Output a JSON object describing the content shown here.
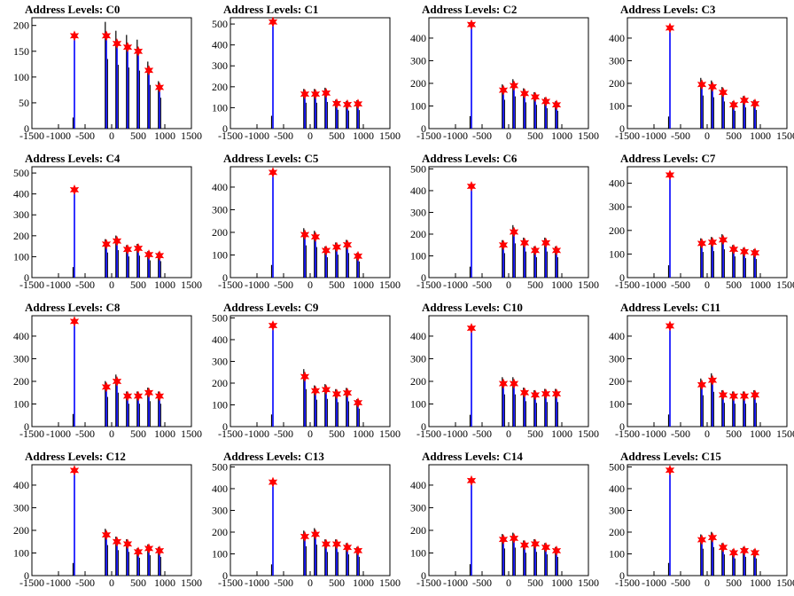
{
  "chart_data": [
    {
      "type": "histogram",
      "title": "Address Levels: C0",
      "ylim": [
        0,
        215
      ],
      "yticks": [
        0,
        50,
        100,
        150,
        200
      ],
      "xlim": [
        -1500,
        1500
      ],
      "xticks": [
        -1500,
        -1000,
        -500,
        0,
        500,
        1000,
        1500
      ],
      "peaks": [
        {
          "x": -700,
          "y": 180
        },
        {
          "x": -100,
          "y": 180
        },
        {
          "x": 100,
          "y": 165
        },
        {
          "x": 300,
          "y": 158
        },
        {
          "x": 500,
          "y": 150
        },
        {
          "x": 700,
          "y": 113
        },
        {
          "x": 900,
          "y": 80
        }
      ]
    },
    {
      "type": "histogram",
      "title": "Address Levels: C1",
      "ylim": [
        0,
        530
      ],
      "yticks": [
        0,
        100,
        200,
        300,
        400,
        500
      ],
      "xlim": [
        -1500,
        1500
      ],
      "xticks": [
        -1500,
        -1000,
        -500,
        0,
        500,
        1000,
        1500
      ],
      "peaks": [
        {
          "x": -700,
          "y": 510
        },
        {
          "x": -100,
          "y": 165
        },
        {
          "x": 100,
          "y": 165
        },
        {
          "x": 300,
          "y": 170
        },
        {
          "x": 500,
          "y": 120
        },
        {
          "x": 700,
          "y": 115
        },
        {
          "x": 900,
          "y": 118
        }
      ]
    },
    {
      "type": "histogram",
      "title": "Address Levels: C2",
      "ylim": [
        0,
        490
      ],
      "yticks": [
        0,
        100,
        200,
        300,
        400
      ],
      "xlim": [
        -1500,
        1500
      ],
      "xticks": [
        -1500,
        -1000,
        -500,
        0,
        500,
        1000,
        1500
      ],
      "peaks": [
        {
          "x": -700,
          "y": 460
        },
        {
          "x": -100,
          "y": 170
        },
        {
          "x": 100,
          "y": 190
        },
        {
          "x": 300,
          "y": 155
        },
        {
          "x": 500,
          "y": 140
        },
        {
          "x": 700,
          "y": 120
        },
        {
          "x": 900,
          "y": 105
        }
      ]
    },
    {
      "type": "histogram",
      "title": "Address Levels: C3",
      "ylim": [
        0,
        490
      ],
      "yticks": [
        0,
        100,
        200,
        300,
        400
      ],
      "xlim": [
        -1500,
        1500
      ],
      "xticks": [
        -1500,
        -1000,
        -500,
        0,
        500,
        1000,
        1500
      ],
      "peaks": [
        {
          "x": -700,
          "y": 445
        },
        {
          "x": -100,
          "y": 195
        },
        {
          "x": 100,
          "y": 185
        },
        {
          "x": 300,
          "y": 160
        },
        {
          "x": 500,
          "y": 105
        },
        {
          "x": 700,
          "y": 125
        },
        {
          "x": 900,
          "y": 110
        }
      ]
    },
    {
      "type": "histogram",
      "title": "Address Levels: C4",
      "ylim": [
        0,
        530
      ],
      "yticks": [
        0,
        100,
        200,
        300,
        400,
        500
      ],
      "xlim": [
        -1500,
        1500
      ],
      "xticks": [
        -1500,
        -1000,
        -500,
        0,
        500,
        1000,
        1500
      ],
      "peaks": [
        {
          "x": -700,
          "y": 420
        },
        {
          "x": -100,
          "y": 160
        },
        {
          "x": 100,
          "y": 175
        },
        {
          "x": 300,
          "y": 135
        },
        {
          "x": 500,
          "y": 140
        },
        {
          "x": 700,
          "y": 110
        },
        {
          "x": 900,
          "y": 105
        }
      ]
    },
    {
      "type": "histogram",
      "title": "Address Levels: C5",
      "ylim": [
        0,
        490
      ],
      "yticks": [
        0,
        100,
        200,
        300,
        400
      ],
      "xlim": [
        -1500,
        1500
      ],
      "xticks": [
        -1500,
        -1000,
        -500,
        0,
        500,
        1000,
        1500
      ],
      "peaks": [
        {
          "x": -700,
          "y": 465
        },
        {
          "x": -100,
          "y": 190
        },
        {
          "x": 100,
          "y": 180
        },
        {
          "x": 300,
          "y": 120
        },
        {
          "x": 500,
          "y": 135
        },
        {
          "x": 700,
          "y": 145
        },
        {
          "x": 900,
          "y": 95
        }
      ]
    },
    {
      "type": "histogram",
      "title": "Address Levels: C6",
      "ylim": [
        0,
        510
      ],
      "yticks": [
        0,
        100,
        200,
        300,
        400,
        500
      ],
      "xlim": [
        -1500,
        1500
      ],
      "xticks": [
        -1500,
        -1000,
        -500,
        0,
        500,
        1000,
        1500
      ],
      "peaks": [
        {
          "x": -700,
          "y": 420
        },
        {
          "x": -100,
          "y": 150
        },
        {
          "x": 100,
          "y": 210
        },
        {
          "x": 300,
          "y": 160
        },
        {
          "x": 500,
          "y": 125
        },
        {
          "x": 700,
          "y": 160
        },
        {
          "x": 900,
          "y": 125
        }
      ]
    },
    {
      "type": "histogram",
      "title": "Address Levels: C7",
      "ylim": [
        0,
        470
      ],
      "yticks": [
        0,
        100,
        200,
        300,
        400
      ],
      "xlim": [
        -1500,
        1500
      ],
      "xticks": [
        -1500,
        -1000,
        -500,
        0,
        500,
        1000,
        1500
      ],
      "peaks": [
        {
          "x": -700,
          "y": 435
        },
        {
          "x": -100,
          "y": 145
        },
        {
          "x": 100,
          "y": 150
        },
        {
          "x": 300,
          "y": 160
        },
        {
          "x": 500,
          "y": 120
        },
        {
          "x": 700,
          "y": 110
        },
        {
          "x": 900,
          "y": 105
        }
      ]
    },
    {
      "type": "histogram",
      "title": "Address Levels: C8",
      "ylim": [
        0,
        490
      ],
      "yticks": [
        0,
        100,
        200,
        300,
        400
      ],
      "xlim": [
        -1500,
        1500
      ],
      "xticks": [
        -1500,
        -1000,
        -500,
        0,
        500,
        1000,
        1500
      ],
      "peaks": [
        {
          "x": -700,
          "y": 465
        },
        {
          "x": -100,
          "y": 175
        },
        {
          "x": 100,
          "y": 200
        },
        {
          "x": 300,
          "y": 135
        },
        {
          "x": 500,
          "y": 135
        },
        {
          "x": 700,
          "y": 150
        },
        {
          "x": 900,
          "y": 135
        }
      ]
    },
    {
      "type": "histogram",
      "title": "Address Levels: C9",
      "ylim": [
        0,
        510
      ],
      "yticks": [
        0,
        100,
        200,
        300,
        400,
        500
      ],
      "xlim": [
        -1500,
        1500
      ],
      "xticks": [
        -1500,
        -1000,
        -500,
        0,
        500,
        1000,
        1500
      ],
      "peaks": [
        {
          "x": -700,
          "y": 465
        },
        {
          "x": -100,
          "y": 230
        },
        {
          "x": 100,
          "y": 165
        },
        {
          "x": 300,
          "y": 170
        },
        {
          "x": 500,
          "y": 150
        },
        {
          "x": 700,
          "y": 155
        },
        {
          "x": 900,
          "y": 110
        }
      ]
    },
    {
      "type": "histogram",
      "title": "Address Levels: C10",
      "ylim": [
        0,
        490
      ],
      "yticks": [
        0,
        100,
        200,
        300,
        400
      ],
      "xlim": [
        -1500,
        1500
      ],
      "xticks": [
        -1500,
        -1000,
        -500,
        0,
        500,
        1000,
        1500
      ],
      "peaks": [
        {
          "x": -700,
          "y": 435
        },
        {
          "x": -100,
          "y": 190
        },
        {
          "x": 100,
          "y": 190
        },
        {
          "x": 300,
          "y": 150
        },
        {
          "x": 500,
          "y": 140
        },
        {
          "x": 700,
          "y": 145
        },
        {
          "x": 900,
          "y": 145
        }
      ]
    },
    {
      "type": "histogram",
      "title": "Address Levels: C11",
      "ylim": [
        0,
        490
      ],
      "yticks": [
        0,
        100,
        200,
        300,
        400
      ],
      "xlim": [
        -1500,
        1500
      ],
      "xticks": [
        -1500,
        -1000,
        -500,
        0,
        500,
        1000,
        1500
      ],
      "peaks": [
        {
          "x": -700,
          "y": 445
        },
        {
          "x": -100,
          "y": 185
        },
        {
          "x": 100,
          "y": 205
        },
        {
          "x": 300,
          "y": 140
        },
        {
          "x": 500,
          "y": 135
        },
        {
          "x": 700,
          "y": 135
        },
        {
          "x": 900,
          "y": 140
        }
      ]
    },
    {
      "type": "histogram",
      "title": "Address Levels: C12",
      "ylim": [
        0,
        490
      ],
      "yticks": [
        0,
        100,
        200,
        300,
        400
      ],
      "xlim": [
        -1500,
        1500
      ],
      "xticks": [
        -1500,
        -1000,
        -500,
        0,
        500,
        1000,
        1500
      ],
      "peaks": [
        {
          "x": -700,
          "y": 465
        },
        {
          "x": -100,
          "y": 180
        },
        {
          "x": 100,
          "y": 150
        },
        {
          "x": 300,
          "y": 140
        },
        {
          "x": 500,
          "y": 105
        },
        {
          "x": 700,
          "y": 120
        },
        {
          "x": 900,
          "y": 110
        }
      ]
    },
    {
      "type": "histogram",
      "title": "Address Levels: C13",
      "ylim": [
        0,
        510
      ],
      "yticks": [
        0,
        100,
        200,
        300,
        400,
        500
      ],
      "xlim": [
        -1500,
        1500
      ],
      "xticks": [
        -1500,
        -1000,
        -500,
        0,
        500,
        1000,
        1500
      ],
      "peaks": [
        {
          "x": -700,
          "y": 430
        },
        {
          "x": -100,
          "y": 180
        },
        {
          "x": 100,
          "y": 190
        },
        {
          "x": 300,
          "y": 145
        },
        {
          "x": 500,
          "y": 145
        },
        {
          "x": 700,
          "y": 130
        },
        {
          "x": 900,
          "y": 115
        }
      ]
    },
    {
      "type": "histogram",
      "title": "Address Levels: C14",
      "ylim": [
        0,
        490
      ],
      "yticks": [
        0,
        100,
        200,
        300,
        400
      ],
      "xlim": [
        -1500,
        1500
      ],
      "xticks": [
        -1500,
        -1000,
        -500,
        0,
        500,
        1000,
        1500
      ],
      "peaks": [
        {
          "x": -700,
          "y": 420
        },
        {
          "x": -100,
          "y": 160
        },
        {
          "x": 100,
          "y": 165
        },
        {
          "x": 300,
          "y": 135
        },
        {
          "x": 500,
          "y": 140
        },
        {
          "x": 700,
          "y": 125
        },
        {
          "x": 900,
          "y": 110
        }
      ]
    },
    {
      "type": "histogram",
      "title": "Address Levels: C15",
      "ylim": [
        0,
        510
      ],
      "yticks": [
        0,
        100,
        200,
        300,
        400,
        500
      ],
      "xlim": [
        -1500,
        1500
      ],
      "xticks": [
        -1500,
        -1000,
        -500,
        0,
        500,
        1000,
        1500
      ],
      "peaks": [
        {
          "x": -700,
          "y": 485
        },
        {
          "x": -100,
          "y": 165
        },
        {
          "x": 100,
          "y": 175
        },
        {
          "x": 300,
          "y": 130
        },
        {
          "x": 500,
          "y": 105
        },
        {
          "x": 700,
          "y": 115
        },
        {
          "x": 900,
          "y": 105
        }
      ]
    }
  ],
  "colors": {
    "primary_bar": "#0000ff",
    "secondary_bar": "#000000",
    "marker": "#ff0000",
    "marker_edge": "#ff0000"
  }
}
